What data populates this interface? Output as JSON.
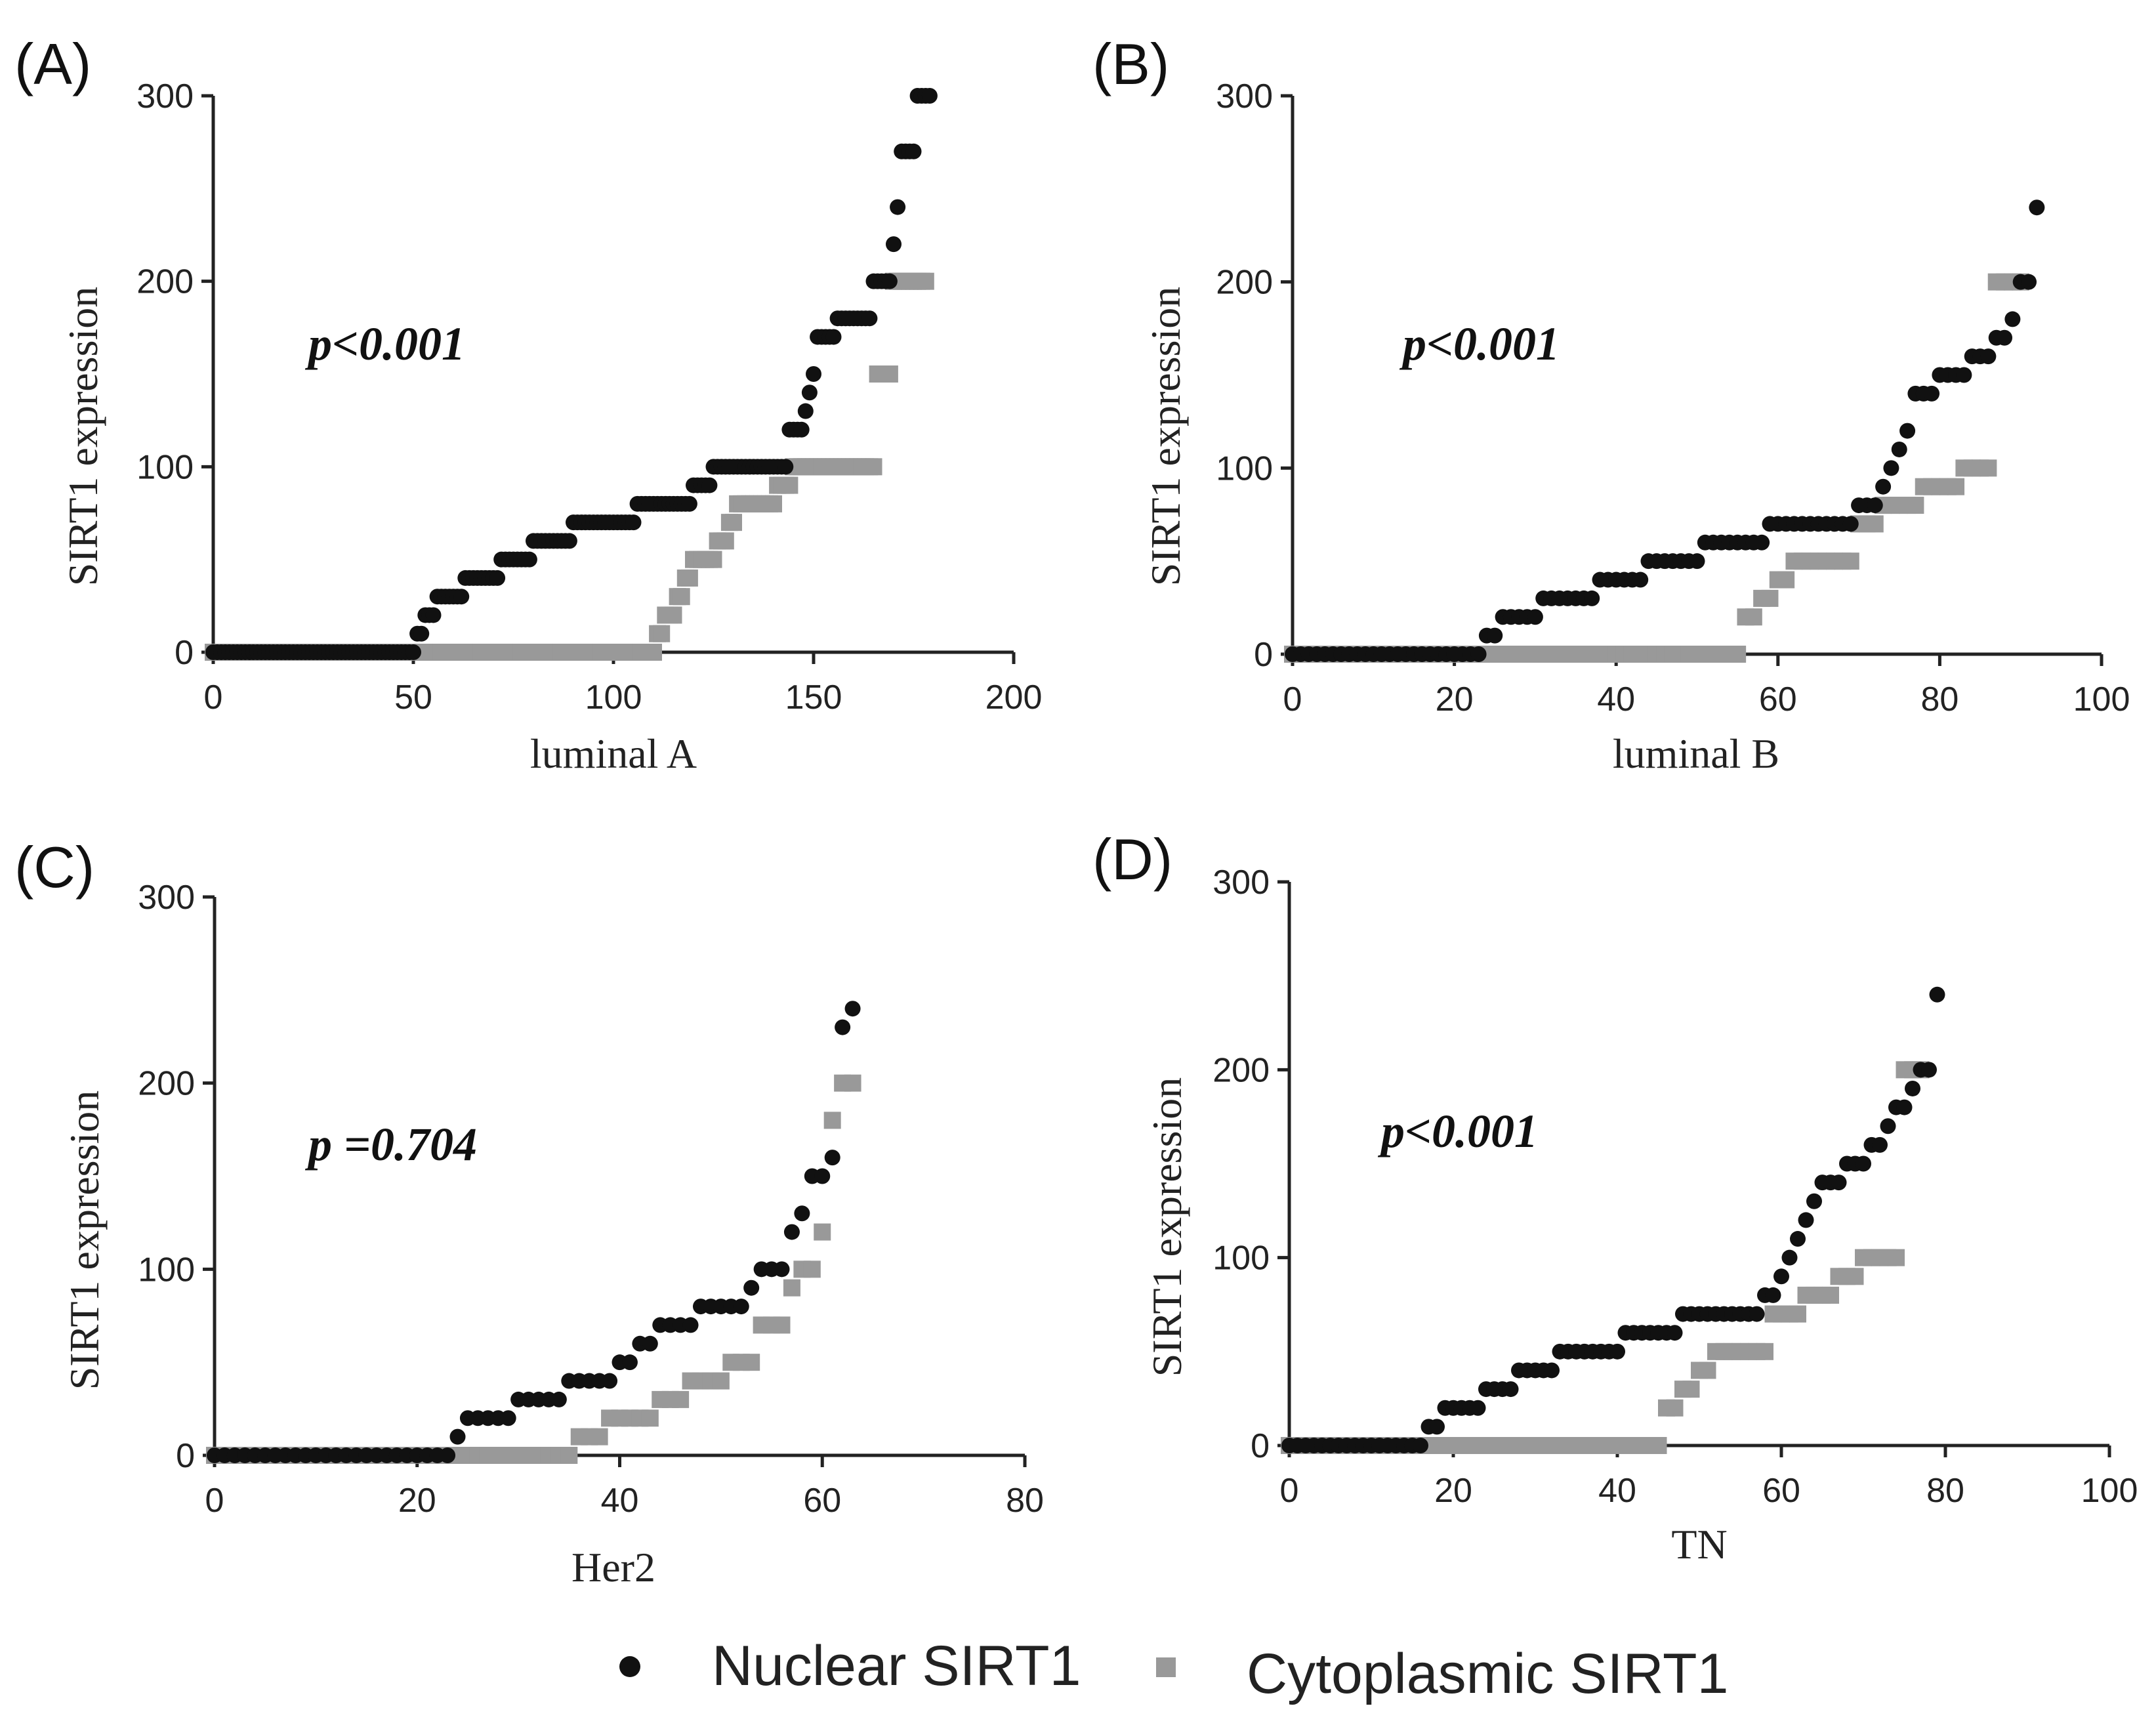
{
  "colors": {
    "nuclear": "#111111",
    "cytoplasmic": "#999999",
    "axis": "#222222"
  },
  "legend": {
    "nuclear_label": "Nuclear SIRT1",
    "cytoplasmic_label": "Cytoplasmic SIRT1",
    "nuclear_icon": "filled-circle",
    "cytoplasmic_icon": "filled-square"
  },
  "chart_data": [
    {
      "id": "A",
      "panel_label": "(A)",
      "type": "scatter",
      "xlabel": "luminal A",
      "ylabel": "SIRT1 expression",
      "annotation": "p<0.001",
      "xlim": [
        0,
        200
      ],
      "ylim": [
        0,
        300
      ],
      "xticks": [
        0,
        50,
        100,
        150,
        200
      ],
      "yticks": [
        0,
        100,
        200,
        300
      ],
      "series": [
        {
          "name": "Nuclear SIRT1",
          "steps": [
            [
              0,
              50,
              0
            ],
            [
              51,
              52,
              10
            ],
            [
              53,
              55,
              20
            ],
            [
              56,
              62,
              30
            ],
            [
              63,
              71,
              40
            ],
            [
              72,
              79,
              50
            ],
            [
              80,
              89,
              60
            ],
            [
              90,
              105,
              70
            ],
            [
              106,
              119,
              80
            ],
            [
              120,
              124,
              90
            ],
            [
              125,
              143,
              100
            ],
            [
              144,
              147,
              120
            ],
            [
              148,
              148,
              130
            ],
            [
              149,
              149,
              140
            ],
            [
              150,
              150,
              150
            ],
            [
              151,
              155,
              170
            ],
            [
              156,
              164,
              180
            ],
            [
              165,
              169,
              200
            ],
            [
              170,
              170,
              220
            ],
            [
              171,
              171,
              240
            ],
            [
              172,
              175,
              270
            ],
            [
              176,
              179,
              300
            ]
          ]
        },
        {
          "name": "Cytoplasmic SIRT1",
          "steps": [
            [
              0,
              110,
              0
            ],
            [
              111,
              112,
              10
            ],
            [
              113,
              115,
              20
            ],
            [
              116,
              117,
              30
            ],
            [
              118,
              119,
              40
            ],
            [
              120,
              125,
              50
            ],
            [
              126,
              128,
              60
            ],
            [
              129,
              130,
              70
            ],
            [
              131,
              140,
              80
            ],
            [
              141,
              144,
              90
            ],
            [
              145,
              165,
              100
            ],
            [
              166,
              169,
              150
            ],
            [
              170,
              178,
              200
            ]
          ]
        }
      ]
    },
    {
      "id": "B",
      "panel_label": "(B)",
      "type": "scatter",
      "xlabel": "luminal B",
      "ylabel": "SIRT1 expression",
      "annotation": "p<0.001",
      "xlim": [
        0,
        100
      ],
      "ylim": [
        0,
        300
      ],
      "xticks": [
        0,
        20,
        40,
        60,
        80,
        100
      ],
      "yticks": [
        0,
        100,
        200,
        300
      ],
      "series": [
        {
          "name": "Nuclear SIRT1",
          "steps": [
            [
              0,
              23,
              0
            ],
            [
              24,
              25,
              10
            ],
            [
              26,
              30,
              20
            ],
            [
              31,
              37,
              30
            ],
            [
              38,
              43,
              40
            ],
            [
              44,
              50,
              50
            ],
            [
              51,
              58,
              60
            ],
            [
              59,
              69,
              70
            ],
            [
              70,
              72,
              80
            ],
            [
              73,
              73,
              90
            ],
            [
              74,
              74,
              100
            ],
            [
              75,
              75,
              110
            ],
            [
              76,
              76,
              120
            ],
            [
              77,
              79,
              140
            ],
            [
              80,
              83,
              150
            ],
            [
              84,
              86,
              160
            ],
            [
              87,
              88,
              170
            ],
            [
              89,
              89,
              180
            ],
            [
              90,
              91,
              200
            ],
            [
              92,
              92,
              240
            ]
          ]
        },
        {
          "name": "Cytoplasmic SIRT1",
          "steps": [
            [
              0,
              55,
              0
            ],
            [
              56,
              57,
              20
            ],
            [
              58,
              59,
              30
            ],
            [
              60,
              61,
              40
            ],
            [
              62,
              69,
              50
            ],
            [
              70,
              72,
              70
            ],
            [
              73,
              77,
              80
            ],
            [
              78,
              82,
              90
            ],
            [
              83,
              86,
              100
            ],
            [
              87,
              90,
              200
            ]
          ]
        }
      ]
    },
    {
      "id": "C",
      "panel_label": "(C)",
      "type": "scatter",
      "xlabel": "Her2",
      "ylabel": "SIRT1 expression",
      "annotation": "p =0.704",
      "xlim": [
        0,
        80
      ],
      "ylim": [
        0,
        300
      ],
      "xticks": [
        0,
        20,
        40,
        60,
        80
      ],
      "yticks": [
        0,
        100,
        200,
        300
      ],
      "series": [
        {
          "name": "Nuclear SIRT1",
          "steps": [
            [
              0,
              23,
              0
            ],
            [
              24,
              24,
              10
            ],
            [
              25,
              29,
              20
            ],
            [
              30,
              34,
              30
            ],
            [
              35,
              39,
              40
            ],
            [
              40,
              41,
              50
            ],
            [
              42,
              43,
              60
            ],
            [
              44,
              47,
              70
            ],
            [
              48,
              52,
              80
            ],
            [
              53,
              53,
              90
            ],
            [
              54,
              56,
              100
            ],
            [
              57,
              57,
              120
            ],
            [
              58,
              58,
              130
            ],
            [
              59,
              60,
              150
            ],
            [
              61,
              61,
              160
            ],
            [
              62,
              62,
              230
            ],
            [
              63,
              63,
              240
            ]
          ]
        },
        {
          "name": "Cytoplasmic SIRT1",
          "steps": [
            [
              0,
              35,
              0
            ],
            [
              36,
              38,
              10
            ],
            [
              39,
              43,
              20
            ],
            [
              44,
              46,
              30
            ],
            [
              47,
              50,
              40
            ],
            [
              51,
              53,
              50
            ],
            [
              54,
              56,
              70
            ],
            [
              57,
              57,
              90
            ],
            [
              58,
              59,
              100
            ],
            [
              60,
              60,
              120
            ],
            [
              61,
              61,
              180
            ],
            [
              62,
              63,
              200
            ]
          ]
        }
      ]
    },
    {
      "id": "D",
      "panel_label": "(D)",
      "type": "scatter",
      "xlabel": "TN",
      "ylabel": "SIRT1 expression",
      "annotation": "p<0.001",
      "xlim": [
        0,
        100
      ],
      "ylim": [
        0,
        300
      ],
      "xticks": [
        0,
        20,
        40,
        60,
        80,
        100
      ],
      "yticks": [
        0,
        100,
        200,
        300
      ],
      "series": [
        {
          "name": "Nuclear SIRT1",
          "steps": [
            [
              0,
              16,
              0
            ],
            [
              17,
              18,
              10
            ],
            [
              19,
              23,
              20
            ],
            [
              24,
              27,
              30
            ],
            [
              28,
              32,
              40
            ],
            [
              33,
              40,
              50
            ],
            [
              41,
              47,
              60
            ],
            [
              48,
              57,
              70
            ],
            [
              58,
              59,
              80
            ],
            [
              60,
              60,
              90
            ],
            [
              61,
              61,
              100
            ],
            [
              62,
              62,
              110
            ],
            [
              63,
              63,
              120
            ],
            [
              64,
              64,
              130
            ],
            [
              65,
              67,
              140
            ],
            [
              68,
              70,
              150
            ],
            [
              71,
              72,
              160
            ],
            [
              73,
              73,
              170
            ],
            [
              74,
              75,
              180
            ],
            [
              76,
              76,
              190
            ],
            [
              77,
              78,
              200
            ],
            [
              79,
              79,
              240
            ]
          ]
        },
        {
          "name": "Cytoplasmic SIRT1",
          "steps": [
            [
              0,
              45,
              0
            ],
            [
              46,
              47,
              20
            ],
            [
              48,
              49,
              30
            ],
            [
              50,
              51,
              40
            ],
            [
              52,
              58,
              50
            ],
            [
              59,
              62,
              70
            ],
            [
              63,
              66,
              80
            ],
            [
              67,
              69,
              90
            ],
            [
              70,
              74,
              100
            ],
            [
              75,
              77,
              200
            ]
          ]
        }
      ]
    }
  ]
}
